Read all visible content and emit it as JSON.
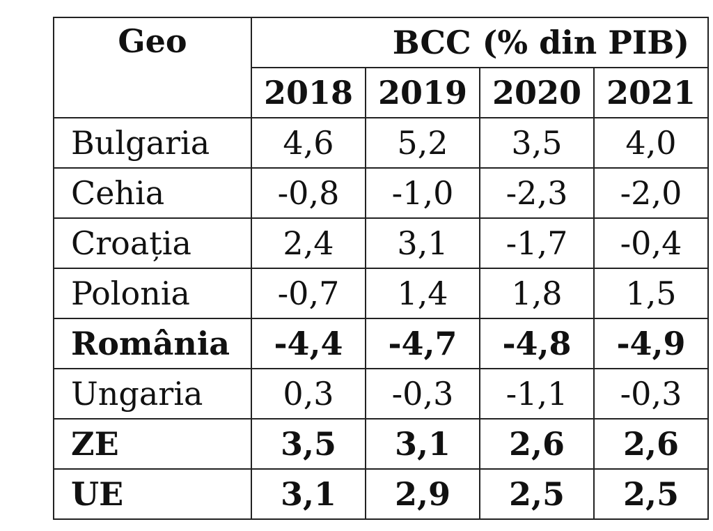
{
  "table": {
    "geo_header": "Geo",
    "group_header": "BCC (% din PIB)",
    "years": [
      "2018",
      "2019",
      "2020",
      "2021"
    ],
    "rows": [
      {
        "geo": "Bulgaria",
        "values": [
          "4,6",
          "5,2",
          "3,5",
          "4,0"
        ],
        "bold": false
      },
      {
        "geo": "Cehia",
        "values": [
          "-0,8",
          "-1,0",
          "-2,3",
          "-2,0"
        ],
        "bold": false
      },
      {
        "geo": "Croația",
        "values": [
          "2,4",
          "3,1",
          "-1,7",
          "-0,4"
        ],
        "bold": false
      },
      {
        "geo": "Polonia",
        "values": [
          "-0,7",
          "1,4",
          "1,8",
          "1,5"
        ],
        "bold": false
      },
      {
        "geo": "România",
        "values": [
          "-4,4",
          "-4,7",
          "-4,8",
          "-4,9"
        ],
        "bold": true
      },
      {
        "geo": "Ungaria",
        "values": [
          "0,3",
          "-0,3",
          "-1,1",
          "-0,3"
        ],
        "bold": false
      },
      {
        "geo": "ZE",
        "values": [
          "3,5",
          "3,1",
          "2,6",
          "2,6"
        ],
        "bold": true
      },
      {
        "geo": "UE",
        "values": [
          "3,1",
          "2,9",
          "2,5",
          "2,5"
        ],
        "bold": true
      }
    ]
  }
}
